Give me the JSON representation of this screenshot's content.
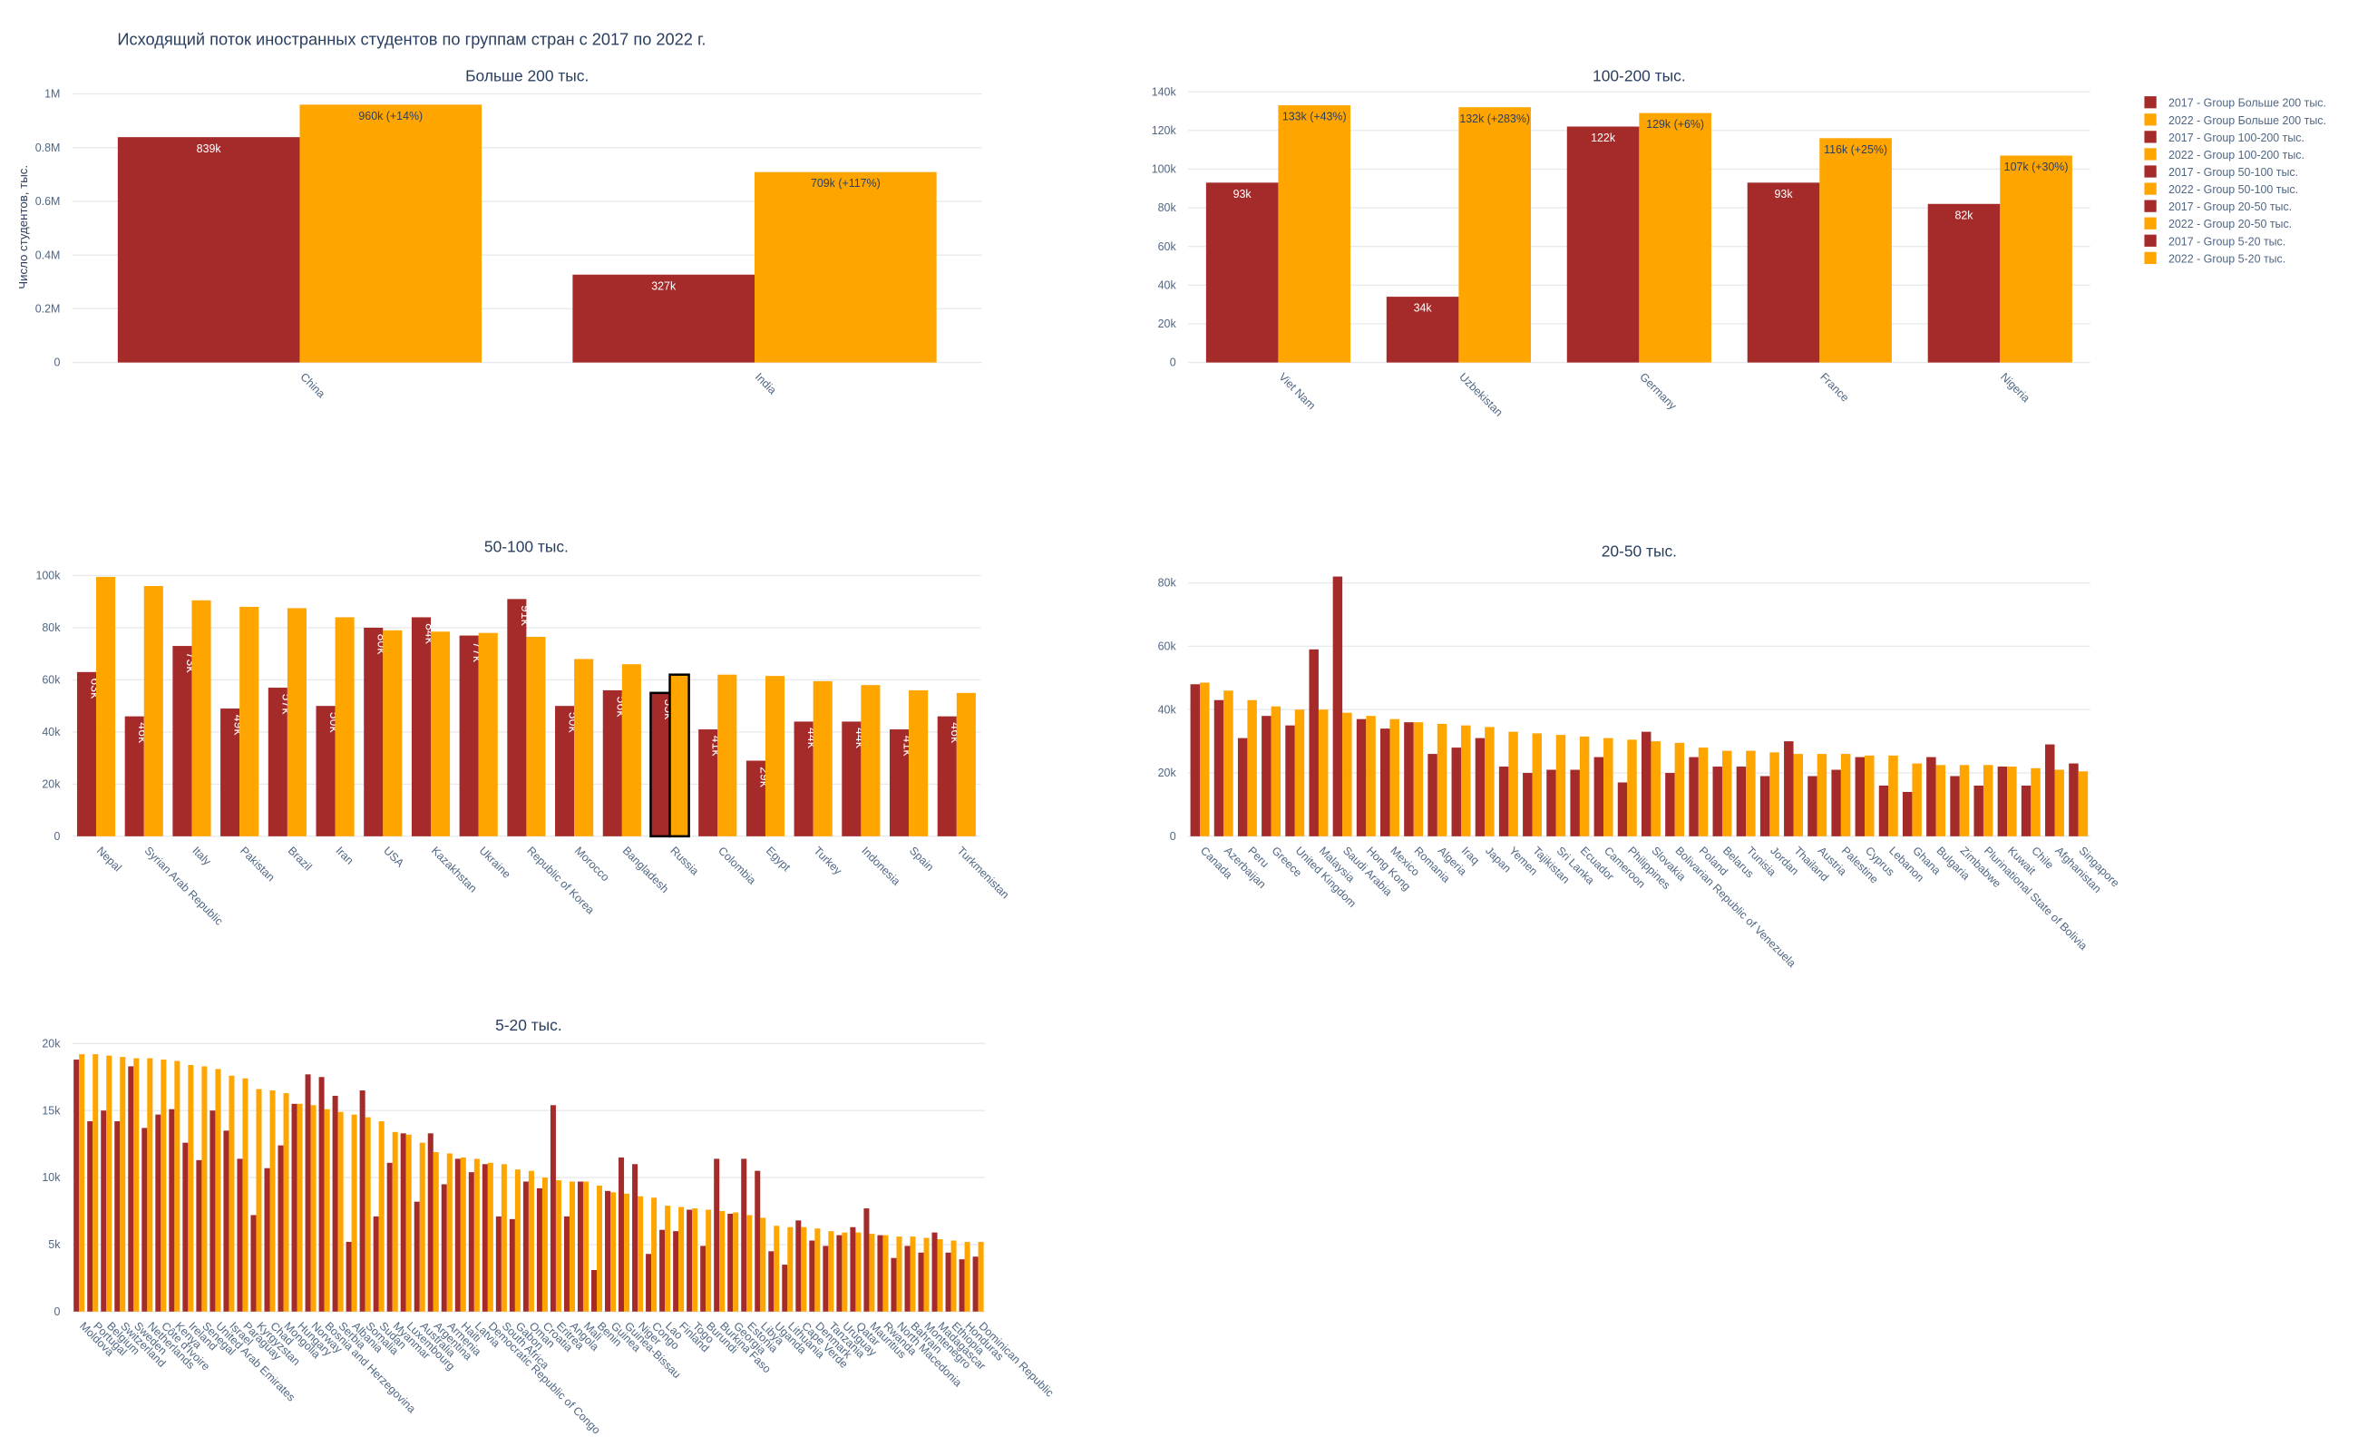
{
  "title": "Исходящий поток иностранных студентов по группам стран с 2017 по 2022 г.",
  "chart_data": [
    {
      "type": "bar",
      "title": "Больше 200 тыс.",
      "ylabel": "Число студентов, тыс.",
      "categories": [
        "China",
        "India"
      ],
      "series": [
        {
          "name": "2017 - Group Больше 200 тыс.",
          "color": "#a52a2a",
          "values": [
            839000,
            327000
          ],
          "value_labels": [
            "839k",
            "327k"
          ]
        },
        {
          "name": "2022 - Group Больше 200 тыс.",
          "color": "#ffa500",
          "values": [
            960000,
            709000
          ],
          "value_labels": [
            "960k (+14%)",
            "709k (+117%)"
          ]
        }
      ],
      "ylim": [
        0,
        1008000
      ],
      "yticks": [
        0,
        {
          "value": 200000,
          "label": "0.2M"
        },
        {
          "value": 400000,
          "label": "0.4M"
        },
        {
          "value": 600000,
          "label": "0.6M"
        },
        {
          "value": 800000,
          "label": "0.8M"
        },
        {
          "value": 1000000,
          "label": "1M"
        }
      ],
      "grid": true
    },
    {
      "type": "bar",
      "title": "100-200 тыс.",
      "categories": [
        "Viet Nam",
        "Uzbekistan",
        "Germany",
        "France",
        "Nigeria"
      ],
      "series": [
        {
          "name": "2017 - Group 100-200 тыс.",
          "color": "#a52a2a",
          "values": [
            93000,
            34000,
            122000,
            93000,
            82000
          ],
          "value_labels": [
            "93k",
            "34k",
            "122k",
            "93k",
            "82k"
          ]
        },
        {
          "name": "2022 - Group 100-200 тыс.",
          "color": "#ffa500",
          "values": [
            133000,
            132000,
            129000,
            116000,
            107000
          ],
          "value_labels": [
            "133k (+43%)",
            "132k (+283%)",
            "129k (+6%)",
            "116k (+25%)",
            "107k (+30%)"
          ]
        }
      ],
      "ylim": [
        0,
        140000
      ],
      "yticks": [
        0,
        {
          "value": 20000,
          "label": "20k"
        },
        {
          "value": 40000,
          "label": "40k"
        },
        {
          "value": 60000,
          "label": "60k"
        },
        {
          "value": 80000,
          "label": "80k"
        },
        {
          "value": 100000,
          "label": "100k"
        },
        {
          "value": 120000,
          "label": "120k"
        },
        {
          "value": 140000,
          "label": "140k"
        }
      ],
      "grid": true
    },
    {
      "type": "bar",
      "title": "50-100 тыс.",
      "label_orientation": "vertical",
      "highlight": 12,
      "categories": [
        "Nepal",
        "Syrian Arab Republic",
        "Italy",
        "Pakistan",
        "Brazil",
        "Iran",
        "USA",
        "Kazakhstan",
        "Ukraine",
        "Republic of Korea",
        "Morocco",
        "Bangladesh",
        "Russia",
        "Colombia",
        "Egypt",
        "Turkey",
        "Indonesia",
        "Spain",
        "Turkmenistan"
      ],
      "series": [
        {
          "name": "2017 - Group 50-100 тыс.",
          "color": "#a52a2a",
          "values": [
            63000,
            46000,
            73000,
            49000,
            57000,
            50000,
            80000,
            84000,
            77000,
            91000,
            50000,
            56000,
            55000,
            41000,
            29000,
            44000,
            44000,
            41000,
            46000
          ],
          "value_labels": [
            "63k",
            "46k",
            "73k",
            "49k",
            "57k",
            "50k",
            "80k",
            "84k",
            "77k",
            "91k",
            "50k",
            "56k",
            "55k",
            "41k",
            "29k",
            "44k",
            "44k",
            "41k",
            "46k"
          ]
        },
        {
          "name": "2022 - Group 50-100 тыс.",
          "color": "#ffa500",
          "values": [
            99500,
            96000,
            90500,
            88000,
            87500,
            84000,
            79000,
            78500,
            78000,
            76500,
            68000,
            66000,
            62000,
            62000,
            61500,
            59500,
            58000,
            56000,
            55000
          ]
        }
      ],
      "ylim": [
        0,
        105000
      ],
      "yticks": [
        0,
        {
          "value": 20000,
          "label": "20k"
        },
        {
          "value": 40000,
          "label": "40k"
        },
        {
          "value": 60000,
          "label": "60k"
        },
        {
          "value": 80000,
          "label": "80k"
        },
        {
          "value": 100000,
          "label": "100k"
        }
      ],
      "grid": true
    },
    {
      "type": "bar",
      "title": "20-50 тыс.",
      "categories": [
        "Canada",
        "Azerbaijan",
        "Peru",
        "Greece",
        "United Kingdom",
        "Malaysia",
        "Saudi Arabia",
        "Hong Kong",
        "Mexico",
        "Romania",
        "Algeria",
        "Iraq",
        "Japan",
        "Yemen",
        "Tajikistan",
        "Sri Lanka",
        "Ecuador",
        "Cameroon",
        "Philippines",
        "Slovakia",
        "Bolivarian Republic of Venezuela",
        "Poland",
        "Belarus",
        "Tunisia",
        "Jordan",
        "Thailand",
        "Austria",
        "Palestine",
        "Cyprus",
        "Lebanon",
        "Ghana",
        "Bulgaria",
        "Zimbabwe",
        "Plurinational State of Bolivia",
        "Kuwait",
        "Chile",
        "Afghanistan",
        "Singapore"
      ],
      "series": [
        {
          "name": "2017 - Group 20-50 тыс.",
          "color": "#a52a2a",
          "values": [
            48000,
            43000,
            31000,
            38000,
            35000,
            59000,
            82000,
            37000,
            34000,
            36000,
            26000,
            28000,
            31000,
            22000,
            20000,
            21000,
            21000,
            25000,
            17000,
            33000,
            20000,
            25000,
            22000,
            22000,
            19000,
            30000,
            19000,
            21000,
            25000,
            16000,
            14000,
            25000,
            19000,
            16000,
            22000,
            16000,
            29000,
            23000
          ]
        },
        {
          "name": "2022 - Group 20-50 тыс.",
          "color": "#ffa500",
          "values": [
            48500,
            46000,
            43000,
            41000,
            40000,
            40000,
            39000,
            38000,
            37000,
            36000,
            35500,
            35000,
            34500,
            33000,
            32500,
            32000,
            31500,
            31000,
            30500,
            30000,
            29500,
            28000,
            27000,
            27000,
            26500,
            26000,
            26000,
            26000,
            25500,
            25500,
            23000,
            22500,
            22500,
            22500,
            22000,
            21500,
            21000,
            20500
          ]
        }
      ],
      "ylim": [
        0,
        85000
      ],
      "yticks": [
        0,
        {
          "value": 20000,
          "label": "20k"
        },
        {
          "value": 40000,
          "label": "40k"
        },
        {
          "value": 60000,
          "label": "60k"
        },
        {
          "value": 80000,
          "label": "80k"
        }
      ],
      "grid": true
    },
    {
      "type": "bar",
      "title": "5-20 тыс.",
      "categories": [
        "Moldova",
        "Portugal",
        "Belgium",
        "Switzerland",
        "Sweden",
        "Netherlands",
        "Côte d'Ivoire",
        "Kenya",
        "Ireland",
        "Senegal",
        "United Arab Emirates",
        "Israel",
        "Paraguay",
        "Kyrgyzstan",
        "Chad",
        "Mongolia",
        "Hungary",
        "Norway",
        "Bosnia and Herzegovina",
        "Serbia",
        "Albania",
        "Somalia",
        "Sudan",
        "Myanmar",
        "Luxembourg",
        "Australia",
        "Argentina",
        "Armenia",
        "Haiti",
        "Latvia",
        "Democratic Republic of Congo",
        "South Africa",
        "Gabon",
        "Oman",
        "Croatia",
        "Eritrea",
        "Angola",
        "Mali",
        "Benin",
        "Guinea",
        "Guinea-Bissau",
        "Niger",
        "Congo",
        "Lao",
        "Finland",
        "Togo",
        "Burundi",
        "Burkina Faso",
        "Georgia",
        "Estonia",
        "Libya",
        "Uganda",
        "Lithuania",
        "Cape Verde",
        "Denmark",
        "Tanzania",
        "Uruguay",
        "Qatar",
        "Mauritius",
        "Rwanda",
        "North Macedonia",
        "Bahrain",
        "Montenegro",
        "Madagascar",
        "Ethiopia",
        "Honduras",
        "Dominican Republic"
      ],
      "series": [
        {
          "name": "2017 - Group 5-20 тыс.",
          "color": "#a52a2a",
          "values": [
            18800,
            14200,
            15000,
            14200,
            18300,
            13700,
            14700,
            15100,
            12600,
            11300,
            15000,
            13500,
            11400,
            7200,
            10700,
            12400,
            15500,
            17700,
            17500,
            16100,
            5200,
            16500,
            7100,
            11100,
            13300,
            8200,
            13300,
            9500,
            11400,
            10400,
            11000,
            7100,
            6900,
            9700,
            9200,
            15400,
            7100,
            9700,
            3100,
            9000,
            11500,
            11000,
            4300,
            6100,
            6000,
            7600,
            4900,
            11400,
            7300,
            11400,
            10500,
            4500,
            3500,
            6800,
            5300,
            4900,
            5700,
            6300,
            7700,
            5700,
            4000,
            4900,
            4400,
            5900,
            4400,
            3900,
            4100
          ]
        },
        {
          "name": "2022 - Group 5-20 тыс.",
          "color": "#ffa500",
          "values": [
            19200,
            19200,
            19100,
            19000,
            18900,
            18900,
            18800,
            18700,
            18400,
            18300,
            18100,
            17600,
            17400,
            16600,
            16500,
            16300,
            15500,
            15400,
            15100,
            14900,
            14700,
            14500,
            14200,
            13400,
            13200,
            12600,
            11900,
            11800,
            11500,
            11400,
            11100,
            11000,
            10600,
            10500,
            10000,
            9800,
            9700,
            9700,
            9400,
            8900,
            8800,
            8600,
            8500,
            7900,
            7800,
            7700,
            7600,
            7500,
            7400,
            7200,
            7000,
            6400,
            6300,
            6300,
            6200,
            6000,
            5900,
            5900,
            5800,
            5700,
            5600,
            5600,
            5500,
            5400,
            5300,
            5200,
            5200
          ]
        }
      ],
      "ylim": [
        0,
        20200
      ],
      "yticks": [
        0,
        {
          "value": 5000,
          "label": "5k"
        },
        {
          "value": 10000,
          "label": "10k"
        },
        {
          "value": 15000,
          "label": "15k"
        },
        {
          "value": 20000,
          "label": "20k"
        }
      ],
      "grid": true
    }
  ]
}
